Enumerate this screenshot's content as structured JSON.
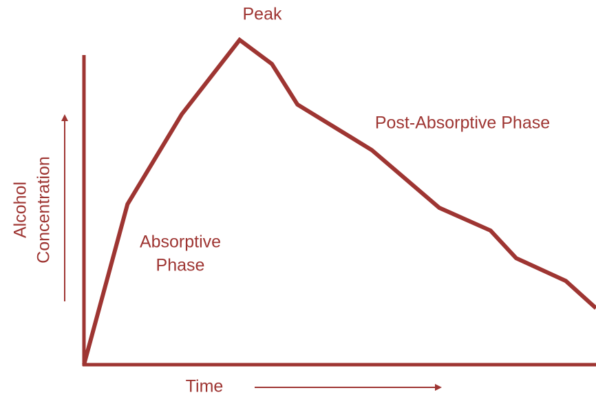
{
  "chart_data": {
    "type": "line",
    "color": "#9e3532",
    "x_label": "Time",
    "y_label": [
      "Alcohol",
      "Concentration"
    ],
    "annotations": [
      {
        "text": [
          "Peak"
        ]
      },
      {
        "text": [
          "Post-Absorptive Phase"
        ]
      },
      {
        "text": [
          "Absorptive",
          "Phase"
        ]
      }
    ],
    "xlim": [
      0,
      100
    ],
    "ylim": [
      0,
      100
    ],
    "x": [
      0,
      8.5,
      19.1,
      30.4,
      36.7,
      41.7,
      56.2,
      69.4,
      79.4,
      84.4,
      94.1,
      100
    ],
    "values": [
      0,
      49.4,
      77.1,
      100,
      92.6,
      80.1,
      66.1,
      48.3,
      41.3,
      32.8,
      25.8,
      17.4
    ]
  }
}
